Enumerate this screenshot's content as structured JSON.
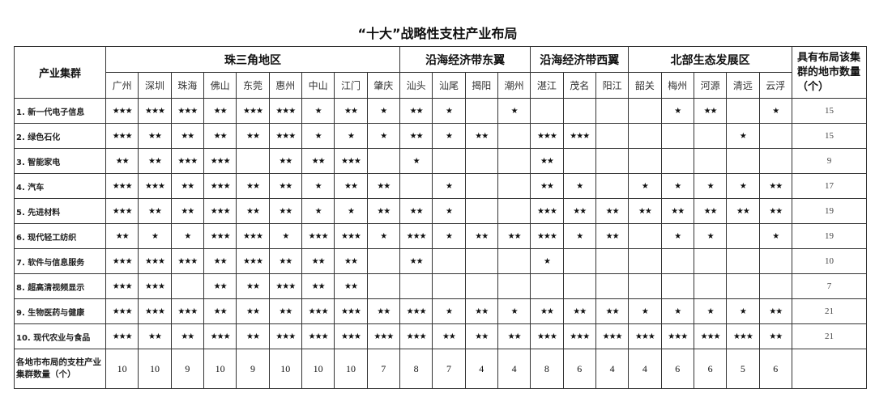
{
  "title": "“十大”战略性支柱产业布局",
  "header": {
    "cluster_label": "产业集群",
    "count_label": "具有布局该集群的地市数量（个）",
    "groups": [
      {
        "label": "珠三角地区",
        "span": 9
      },
      {
        "label": "沿海经济带东翼",
        "span": 4
      },
      {
        "label": "沿海经济带西翼",
        "span": 3
      },
      {
        "label": "北部生态发展区",
        "span": 5
      }
    ],
    "cities": [
      "广州",
      "深圳",
      "珠海",
      "佛山",
      "东莞",
      "惠州",
      "中山",
      "江门",
      "肇庆",
      "汕头",
      "汕尾",
      "揭阳",
      "潮州",
      "湛江",
      "茂名",
      "阳江",
      "韶关",
      "梅州",
      "河源",
      "清远",
      "云浮"
    ]
  },
  "rows": [
    {
      "name": "1. 新一代电子信息",
      "stars": [
        "★★★",
        "★★★",
        "★★★",
        "★★",
        "★★★",
        "★★★",
        "★",
        "★★",
        "★",
        "★★",
        "★",
        "",
        "★",
        "",
        "",
        "",
        "",
        "★",
        "★★",
        "",
        "★"
      ],
      "count": "15"
    },
    {
      "name": "2. 绿色石化",
      "stars": [
        "★★★",
        "★★",
        "★★",
        "★★",
        "★★",
        "★★★",
        "★",
        "★",
        "★",
        "★★",
        "★",
        "★★",
        "",
        "★★★",
        "★★★",
        "",
        "",
        "",
        "",
        "★",
        ""
      ],
      "count": "15"
    },
    {
      "name": "3. 智能家电",
      "stars": [
        "★★",
        "★★",
        "★★★",
        "★★★",
        "",
        "★★",
        "★★",
        "★★★",
        "",
        "★",
        "",
        "",
        "",
        "★★",
        "",
        "",
        "",
        "",
        "",
        "",
        ""
      ],
      "count": "9"
    },
    {
      "name": "4. 汽车",
      "stars": [
        "★★★",
        "★★★",
        "★★",
        "★★★",
        "★★",
        "★★",
        "★",
        "★★",
        "★★",
        "",
        "★",
        "",
        "",
        "★★",
        "★",
        "",
        "★",
        "★",
        "★",
        "★",
        "★★"
      ],
      "count": "17"
    },
    {
      "name": "5. 先进材料",
      "stars": [
        "★★★",
        "★★",
        "★★",
        "★★★",
        "★★",
        "★★",
        "★",
        "★",
        "★★",
        "★★",
        "★",
        "",
        "",
        "★★★",
        "★★",
        "★★",
        "★★",
        "★★",
        "★★",
        "★★",
        "★★"
      ],
      "count": "19"
    },
    {
      "name": "6. 现代轻工纺织",
      "stars": [
        "★★",
        "★",
        "★",
        "★★★",
        "★★★",
        "★",
        "★★★",
        "★★★",
        "★",
        "★★★",
        "★",
        "★★",
        "★★",
        "★★★",
        "★",
        "★★",
        "",
        "★",
        "★",
        "",
        "★"
      ],
      "count": "19"
    },
    {
      "name": "7. 软件与信息服务",
      "stars": [
        "★★★",
        "★★★",
        "★★★",
        "★★",
        "★★★",
        "★★",
        "★★",
        "★★",
        "",
        "★★",
        "",
        "",
        "",
        "★",
        "",
        "",
        "",
        "",
        "",
        "",
        ""
      ],
      "count": "10"
    },
    {
      "name": "8. 超高清视频显示",
      "stars": [
        "★★★",
        "★★★",
        "",
        "★★",
        "★★",
        "★★★",
        "★★",
        "★★",
        "",
        "",
        "",
        "",
        "",
        "",
        "",
        "",
        "",
        "",
        "",
        "",
        ""
      ],
      "count": "7"
    },
    {
      "name": "9. 生物医药与健康",
      "stars": [
        "★★★",
        "★★★",
        "★★★",
        "★★",
        "★★",
        "★★",
        "★★★",
        "★★★",
        "★★",
        "★★★",
        "★",
        "★★",
        "★",
        "★★",
        "★★",
        "★★",
        "★",
        "★",
        "★",
        "★",
        "★★"
      ],
      "count": "21"
    },
    {
      "name": "10. 现代农业与食品",
      "stars": [
        "★★★",
        "★★",
        "★★",
        "★★★",
        "★★",
        "★★★",
        "★★★",
        "★★★",
        "★★★",
        "★★★",
        "★★",
        "★★",
        "★★",
        "★★★",
        "★★★",
        "★★★",
        "★★★",
        "★★★",
        "★★★",
        "★★★",
        "★★"
      ],
      "count": "21"
    }
  ],
  "totals": {
    "label": "各地市布局的支柱产业集群数量（个）",
    "values": [
      "10",
      "10",
      "9",
      "10",
      "9",
      "10",
      "10",
      "10",
      "7",
      "8",
      "7",
      "4",
      "4",
      "8",
      "6",
      "4",
      "4",
      "6",
      "6",
      "5",
      "6"
    ]
  }
}
